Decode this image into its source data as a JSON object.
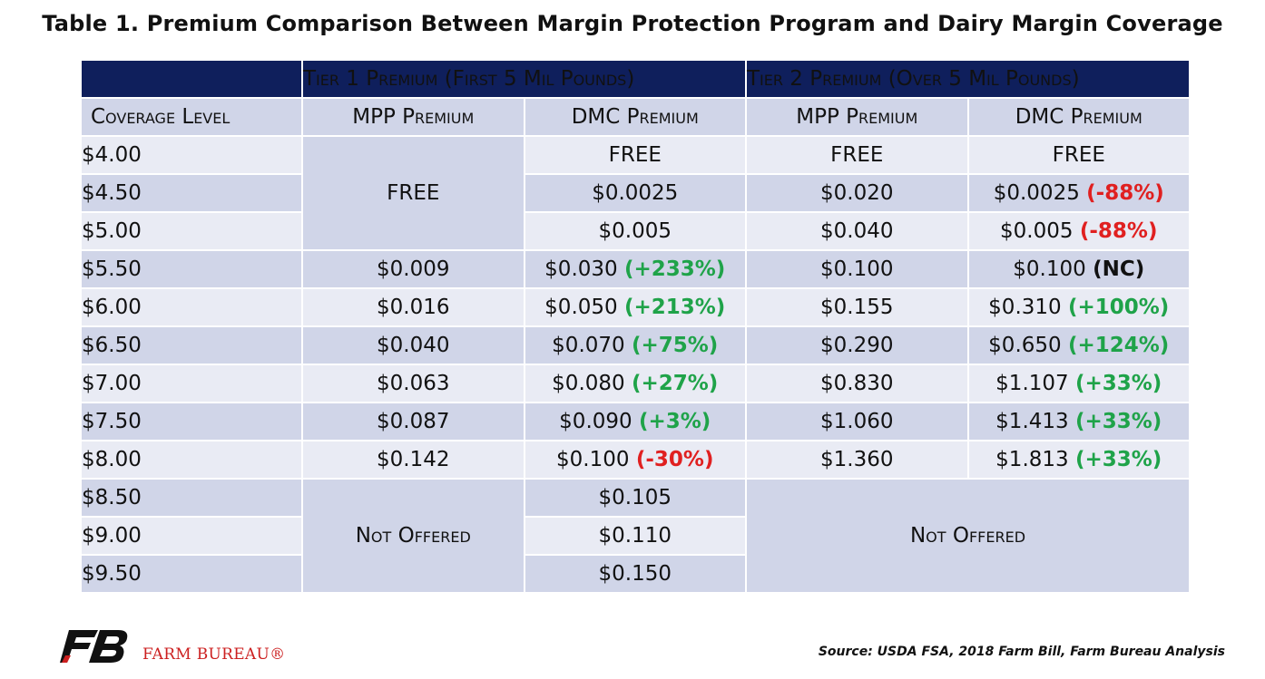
{
  "title": "Table 1. Premium Comparison Between Margin Protection Program and Dairy Margin Coverage",
  "header": {
    "tier1": "Tier 1 Premium (First 5 Mil Pounds)",
    "tier2": "Tier 2 Premium (Over 5 Mil Pounds)"
  },
  "columns": {
    "coverage": "Coverage Level",
    "mpp1": "MPP Premium",
    "dmc1": "DMC Premium",
    "mpp2": "MPP Premium",
    "dmc2": "DMC Premium"
  },
  "rows": [
    {
      "level": "$4.00",
      "dmc1": "FREE",
      "dmc1_pct": "",
      "mpp2": "FREE",
      "dmc2": "FREE",
      "dmc2_pct": ""
    },
    {
      "level": "$4.50",
      "dmc1": "$0.0025",
      "dmc1_pct": "",
      "mpp2": "$0.020",
      "dmc2": "$0.0025",
      "dmc2_pct": "(-88%)"
    },
    {
      "level": "$5.00",
      "dmc1": "$0.005",
      "dmc1_pct": "",
      "mpp2": "$0.040",
      "dmc2": "$0.005",
      "dmc2_pct": "(-88%)"
    },
    {
      "level": "$5.50",
      "mpp1": "$0.009",
      "dmc1": "$0.030",
      "dmc1_pct": "(+233%)",
      "mpp2": "$0.100",
      "dmc2": "$0.100",
      "dmc2_pct": "(NC)"
    },
    {
      "level": "$6.00",
      "mpp1": "$0.016",
      "dmc1": "$0.050",
      "dmc1_pct": "(+213%)",
      "mpp2": "$0.155",
      "dmc2": "$0.310",
      "dmc2_pct": "(+100%)"
    },
    {
      "level": "$6.50",
      "mpp1": "$0.040",
      "dmc1": "$0.070",
      "dmc1_pct": "(+75%)",
      "mpp2": "$0.290",
      "dmc2": "$0.650",
      "dmc2_pct": "(+124%)"
    },
    {
      "level": "$7.00",
      "mpp1": "$0.063",
      "dmc1": "$0.080",
      "dmc1_pct": "(+27%)",
      "mpp2": "$0.830",
      "dmc2": "$1.107",
      "dmc2_pct": "(+33%)"
    },
    {
      "level": "$7.50",
      "mpp1": "$0.087",
      "dmc1": "$0.090",
      "dmc1_pct": "(+3%)",
      "mpp2": "$1.060",
      "dmc2": "$1.413",
      "dmc2_pct": "(+33%)"
    },
    {
      "level": "$8.00",
      "mpp1": "$0.142",
      "dmc1": "$0.100",
      "dmc1_pct": "(-30%)",
      "mpp2": "$1.360",
      "dmc2": "$1.813",
      "dmc2_pct": "(+33%)"
    },
    {
      "level": "$8.50",
      "dmc1": "$0.105"
    },
    {
      "level": "$9.00",
      "dmc1": "$0.110"
    },
    {
      "level": "$9.50",
      "dmc1": "$0.150"
    }
  ],
  "merged": {
    "mpp1_free": "FREE",
    "mpp1_not_offered": "Not Offered",
    "tier2_not_offered": "Not Offered"
  },
  "colors": {
    "header_bg": "#0f1f5c",
    "row_dark": "#d0d5e8",
    "row_light": "#e9ebf4",
    "increase": "#1fa349",
    "decrease": "#e02020",
    "brand_red": "#cc2020"
  },
  "footer": {
    "logo_text": "FARM BUREAU®",
    "source": "Source: USDA FSA, 2018 Farm Bill, Farm Bureau Analysis"
  }
}
